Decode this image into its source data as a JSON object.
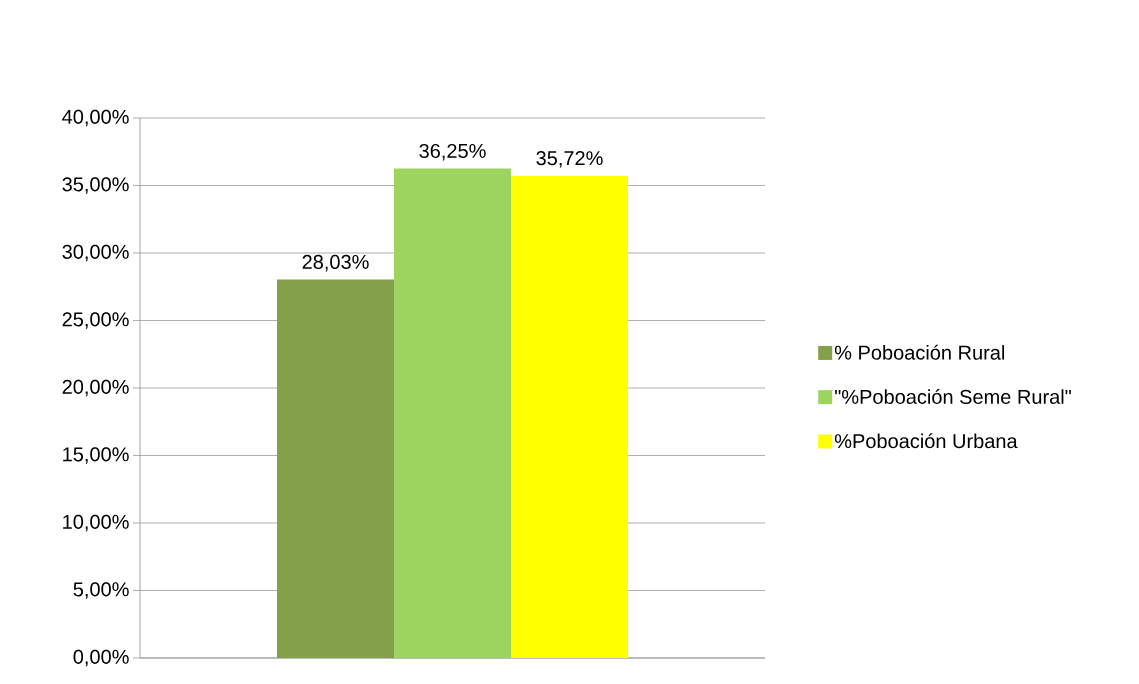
{
  "chart_data": {
    "type": "bar",
    "categories": [
      null
    ],
    "series": [
      {
        "name": "% Poboación Rural",
        "color": "#84a048",
        "values": [
          28.03
        ],
        "value_labels": [
          "28,03%"
        ]
      },
      {
        "name": "\"%Poboación Seme Rural\"",
        "color": "#9dd45d",
        "values": [
          36.25
        ],
        "value_labels": [
          "36,25%"
        ]
      },
      {
        "name": "%Poboación Urbana",
        "color": "#ffff00",
        "values": [
          35.72
        ],
        "value_labels": [
          "35,72%"
        ]
      }
    ],
    "ylim": [
      0,
      40
    ],
    "yticks": [
      {
        "value": 0,
        "label": "0,00%"
      },
      {
        "value": 5,
        "label": "5,00%"
      },
      {
        "value": 10,
        "label": "10,00%"
      },
      {
        "value": 15,
        "label": "15,00%"
      },
      {
        "value": 20,
        "label": "20,00%"
      },
      {
        "value": 25,
        "label": "25,00%"
      },
      {
        "value": 30,
        "label": "30,00%"
      },
      {
        "value": 35,
        "label": "35,00%"
      },
      {
        "value": 40,
        "label": "40,00%"
      }
    ],
    "grid": "y",
    "legend": "right"
  }
}
